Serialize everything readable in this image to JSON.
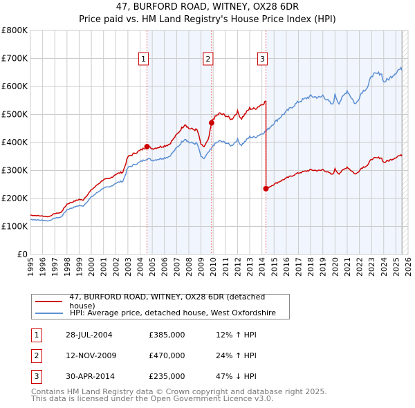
{
  "chart_data": {
    "type": "line",
    "title": "47, BURFORD ROAD, WITNEY, OX28 6DR",
    "subtitle": "Price paid vs. HM Land Registry's House Price Index (HPI)",
    "xlim": [
      1995,
      2026
    ],
    "ylim": [
      0,
      800000
    ],
    "x_ticks": [
      "1995",
      "1996",
      "1997",
      "1998",
      "1999",
      "2000",
      "2001",
      "2002",
      "2003",
      "2004",
      "2005",
      "2006",
      "2007",
      "2008",
      "2009",
      "2010",
      "2011",
      "2012",
      "2013",
      "2014",
      "2015",
      "2016",
      "2017",
      "2018",
      "2019",
      "2020",
      "2021",
      "2022",
      "2023",
      "2024",
      "2025",
      "2026"
    ],
    "y_ticks": [
      {
        "v": 0,
        "label": "£0"
      },
      {
        "v": 100000,
        "label": "£100K"
      },
      {
        "v": 200000,
        "label": "£200K"
      },
      {
        "v": 300000,
        "label": "£300K"
      },
      {
        "v": 400000,
        "label": "£400K"
      },
      {
        "v": 500000,
        "label": "£500K"
      },
      {
        "v": 600000,
        "label": "£600K"
      },
      {
        "v": 700000,
        "label": "£700K"
      },
      {
        "v": 800000,
        "label": "£800K"
      }
    ],
    "grid": true,
    "hpi_series": {
      "name": "HPI: Average price, detached house, West Oxfordshire",
      "color": "#5b8fd4",
      "points": [
        [
          1995,
          125
        ],
        [
          1996,
          122
        ],
        [
          1996.5,
          120
        ],
        [
          1997,
          130
        ],
        [
          1997.5,
          133
        ],
        [
          1998,
          160
        ],
        [
          1999,
          175
        ],
        [
          1999.3,
          172
        ],
        [
          2000,
          205
        ],
        [
          2001,
          238
        ],
        [
          2001.5,
          240
        ],
        [
          2002,
          255
        ],
        [
          2002.6,
          262
        ],
        [
          2003,
          310
        ],
        [
          2004,
          330
        ],
        [
          2004.6,
          343
        ],
        [
          2005,
          336
        ],
        [
          2006,
          345
        ],
        [
          2006.4,
          350
        ],
        [
          2007,
          380
        ],
        [
          2007.7,
          415
        ],
        [
          2008,
          400
        ],
        [
          2008.7,
          395
        ],
        [
          2009,
          350
        ],
        [
          2009.2,
          340
        ],
        [
          2009.9,
          380
        ],
        [
          2010,
          390
        ],
        [
          2010.5,
          405
        ],
        [
          2011,
          400
        ],
        [
          2011.5,
          388
        ],
        [
          2012,
          410
        ],
        [
          2012.3,
          390
        ],
        [
          2013,
          420
        ],
        [
          2013.4,
          418
        ],
        [
          2014,
          432
        ],
        [
          2014.33,
          440
        ],
        [
          2015,
          470
        ],
        [
          2016,
          510
        ],
        [
          2017,
          545
        ],
        [
          2018,
          565
        ],
        [
          2018.8,
          560
        ],
        [
          2019,
          568
        ],
        [
          2019.8,
          532
        ],
        [
          2020,
          570
        ],
        [
          2020.3,
          540
        ],
        [
          2021,
          585
        ],
        [
          2021.7,
          535
        ],
        [
          2022.2,
          580
        ],
        [
          2022.7,
          598
        ],
        [
          2023,
          640
        ],
        [
          2023.8,
          648
        ],
        [
          2024,
          615
        ],
        [
          2024.5,
          630
        ],
        [
          2025,
          650
        ],
        [
          2025.2,
          660
        ],
        [
          2025.5,
          662
        ]
      ]
    },
    "property_series": {
      "name": "47, BURFORD ROAD, WITNEY, OX28 6DR (detached house)",
      "color": "#cc0000"
    },
    "sales": [
      {
        "n": "1",
        "x": 2004.57,
        "date": "28-JUL-2004",
        "price": "£385,000",
        "value": 385000,
        "hpi": "12% ↑ HPI"
      },
      {
        "n": "2",
        "x": 2009.87,
        "date": "12-NOV-2009",
        "price": "£470,000",
        "value": 470000,
        "hpi": "24% ↑ HPI"
      },
      {
        "n": "3",
        "x": 2014.33,
        "date": "30-APR-2014",
        "price": "£235,000",
        "value": 235000,
        "hpi": "47% ↓ HPI"
      }
    ],
    "data_end": 2025.5
  },
  "footer": [
    "Contains HM Land Registry data © Crown copyright and database right 2025.",
    "This data is licensed under the Open Government Licence v3.0."
  ]
}
